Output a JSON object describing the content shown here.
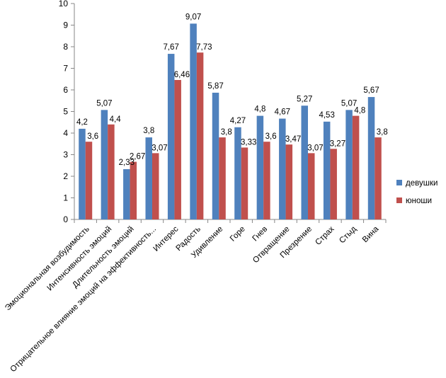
{
  "chart_data": {
    "type": "bar",
    "title": "",
    "xlabel": "",
    "ylabel": "",
    "ylim": [
      0,
      10
    ],
    "ytick_step": 1,
    "grid": false,
    "legend_position": "right",
    "categories": [
      "Эмоциональная возбудимость",
      "Интенсивность эмоций",
      "Длительность эмоций",
      "Отрицательное влияние эмоций на эффективность...",
      "Интерес",
      "Радость",
      "Удивление",
      "Горе",
      "Гнев",
      "Отвращение",
      "Презрение",
      "Страх",
      "Стыд",
      "Вина"
    ],
    "series": [
      {
        "name": "девушки",
        "color": "#4F81BD",
        "values": [
          4.2,
          5.07,
          2.33,
          3.8,
          7.67,
          9.07,
          5.87,
          4.27,
          4.8,
          4.67,
          5.27,
          4.53,
          5.07,
          5.67
        ],
        "labels": [
          "4,2",
          "5,07",
          "2,33",
          "3,8",
          "7,67",
          "9,07",
          "5,87",
          "4,27",
          "4,8",
          "4,67",
          "5,27",
          "4,53",
          "5,07",
          "5,67"
        ]
      },
      {
        "name": "юноши",
        "color": "#C0504D",
        "values": [
          3.6,
          4.4,
          2.67,
          3.07,
          6.46,
          7.73,
          3.8,
          3.33,
          3.6,
          3.47,
          3.07,
          3.27,
          4.8,
          3.8
        ],
        "labels": [
          "3,6",
          "4,4",
          "2,67",
          "3,07",
          "6,46",
          "7,73",
          "3,8",
          "3,33",
          "3,6",
          "3,47",
          "3,07",
          "3,27",
          "4,8",
          "3,8"
        ]
      }
    ]
  }
}
